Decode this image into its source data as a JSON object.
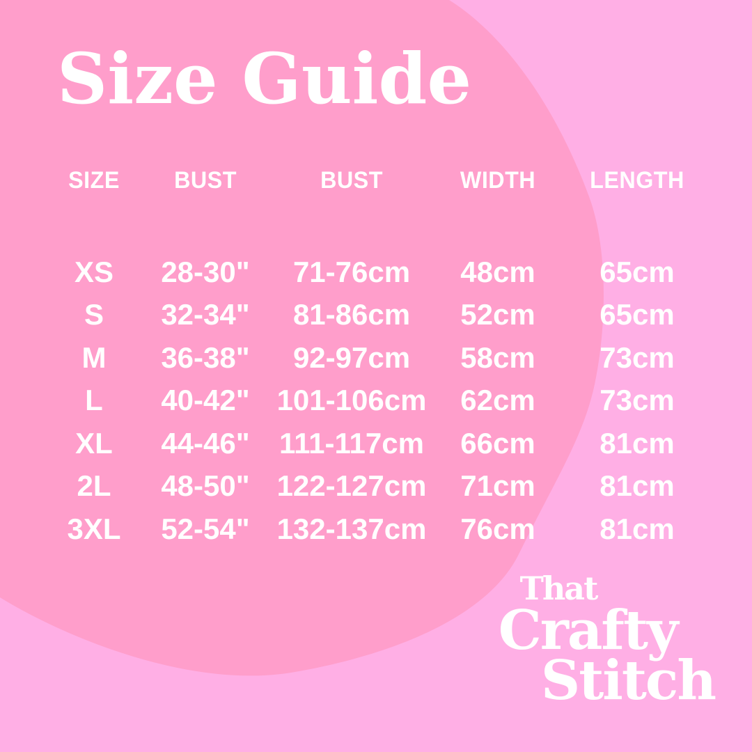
{
  "page": {
    "title": "Size Guide"
  },
  "colors": {
    "background": "#ffafe5",
    "blob": "#ff9ecb",
    "text": "#ffffff"
  },
  "chart_data": {
    "type": "table",
    "title": "Size Guide",
    "columns": [
      "SIZE",
      "BUST",
      "BUST",
      "WIDTH",
      "LENGTH"
    ],
    "rows": [
      [
        "XS",
        "28-30\"",
        "71-76cm",
        "48cm",
        "65cm"
      ],
      [
        "S",
        "32-34\"",
        "81-86cm",
        "52cm",
        "65cm"
      ],
      [
        "M",
        "36-38\"",
        "92-97cm",
        "58cm",
        "73cm"
      ],
      [
        "L",
        "40-42\"",
        "101-106cm",
        "62cm",
        "73cm"
      ],
      [
        "XL",
        "44-46\"",
        "111-117cm",
        "66cm",
        "81cm"
      ],
      [
        "2L",
        "48-50\"",
        "122-127cm",
        "71cm",
        "81cm"
      ],
      [
        "3XL",
        "52-54\"",
        "132-137cm",
        "76cm",
        "81cm"
      ]
    ]
  },
  "logo": {
    "line1": "That",
    "line2": "Crafty",
    "line3": "Stitch"
  }
}
